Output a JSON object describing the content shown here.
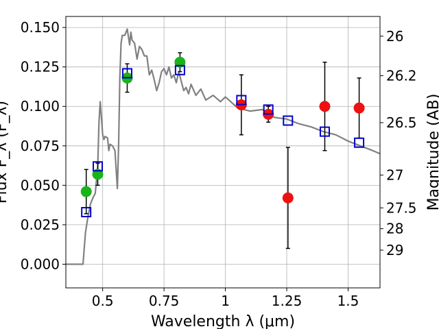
{
  "chart_data": {
    "type": "scatter",
    "title": "",
    "xlabel": "Wavelength  λ (μm)",
    "ylabel": "Flux F_λ (F_λ)",
    "ylabel_right": "Magnitude (AB)",
    "xlim": [
      0.35,
      1.63
    ],
    "ylim": [
      -0.015,
      0.157
    ],
    "grid": true,
    "x_ticks": [
      {
        "value": 0.5,
        "label": "0.5"
      },
      {
        "value": 0.75,
        "label": "0.75"
      },
      {
        "value": 1.0,
        "label": "1"
      },
      {
        "value": 1.25,
        "label": "1.25"
      },
      {
        "value": 1.5,
        "label": "1.5"
      }
    ],
    "y_ticks": [
      {
        "value": 0.0,
        "label": "0.000"
      },
      {
        "value": 0.025,
        "label": "0.025"
      },
      {
        "value": 0.05,
        "label": "0.050"
      },
      {
        "value": 0.075,
        "label": "0.075"
      },
      {
        "value": 0.1,
        "label": "0.100"
      },
      {
        "value": 0.125,
        "label": "0.125"
      },
      {
        "value": 0.15,
        "label": "0.150"
      }
    ],
    "right_ticks": [
      {
        "label": "26",
        "at_flux": 0.1445
      },
      {
        "label": "26.2",
        "at_flux": 0.1195
      },
      {
        "label": "26.5",
        "at_flux": 0.0897
      },
      {
        "label": "27",
        "at_flux": 0.0565
      },
      {
        "label": "27.5",
        "at_flux": 0.0357
      },
      {
        "label": "28",
        "at_flux": 0.0225
      },
      {
        "label": "29",
        "at_flux": 0.0089
      }
    ],
    "model_spectrum": {
      "color": "#808080",
      "x": [
        0.35,
        0.42,
        0.425,
        0.43,
        0.44,
        0.45,
        0.46,
        0.47,
        0.48,
        0.485,
        0.49,
        0.495,
        0.5,
        0.505,
        0.51,
        0.52,
        0.525,
        0.53,
        0.54,
        0.55,
        0.56,
        0.565,
        0.57,
        0.575,
        0.58,
        0.59,
        0.6,
        0.61,
        0.615,
        0.62,
        0.63,
        0.64,
        0.65,
        0.66,
        0.67,
        0.68,
        0.69,
        0.7,
        0.71,
        0.72,
        0.73,
        0.74,
        0.75,
        0.76,
        0.77,
        0.78,
        0.79,
        0.8,
        0.81,
        0.82,
        0.83,
        0.84,
        0.85,
        0.86,
        0.88,
        0.9,
        0.92,
        0.95,
        0.98,
        1.0,
        1.05,
        1.1,
        1.15,
        1.2,
        1.25,
        1.3,
        1.35,
        1.4,
        1.45,
        1.5,
        1.55,
        1.6,
        1.63
      ],
      "y": [
        0.0,
        0.0,
        0.01,
        0.02,
        0.03,
        0.038,
        0.042,
        0.045,
        0.062,
        0.09,
        0.103,
        0.093,
        0.082,
        0.079,
        0.081,
        0.08,
        0.072,
        0.076,
        0.075,
        0.072,
        0.048,
        0.075,
        0.118,
        0.14,
        0.145,
        0.145,
        0.149,
        0.139,
        0.147,
        0.142,
        0.14,
        0.13,
        0.138,
        0.136,
        0.132,
        0.132,
        0.12,
        0.123,
        0.117,
        0.11,
        0.115,
        0.122,
        0.124,
        0.12,
        0.125,
        0.118,
        0.12,
        0.115,
        0.122,
        0.116,
        0.11,
        0.112,
        0.108,
        0.114,
        0.107,
        0.111,
        0.104,
        0.107,
        0.103,
        0.106,
        0.099,
        0.097,
        0.098,
        0.093,
        0.092,
        0.089,
        0.087,
        0.084,
        0.082,
        0.078,
        0.075,
        0.072,
        0.07
      ]
    },
    "series": [
      {
        "marker": "circle",
        "color": "#1ab31a",
        "x": [
          0.433,
          0.48,
          0.6,
          0.815
        ],
        "y": [
          0.046,
          0.057,
          0.118,
          0.128
        ],
        "yerr": [
          0.014,
          0.007,
          0.009,
          0.006
        ]
      },
      {
        "marker": "circle",
        "color": "#ee1111",
        "x": [
          1.065,
          1.175,
          1.255,
          1.405,
          1.545
        ],
        "y": [
          0.101,
          0.095,
          0.042,
          0.1,
          0.099
        ],
        "yerr": [
          0.019,
          0.005,
          0.032,
          0.028,
          0.019
        ]
      },
      {
        "marker": "open-square",
        "color": "#0000cc",
        "x": [
          0.433,
          0.48,
          0.6,
          0.815,
          1.065,
          1.175,
          1.255,
          1.405,
          1.545
        ],
        "y": [
          0.033,
          0.062,
          0.121,
          0.123,
          0.104,
          0.098,
          0.091,
          0.084,
          0.077
        ]
      }
    ]
  }
}
